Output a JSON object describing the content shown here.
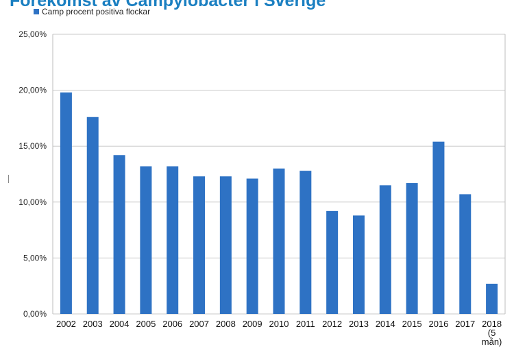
{
  "chart_data": {
    "type": "bar",
    "title": "Förekomst av Campylobacter i Sverige",
    "legend": {
      "label": "Camp procent positiva flockar",
      "position": "top-left"
    },
    "categories": [
      "2002",
      "2003",
      "2004",
      "2005",
      "2006",
      "2007",
      "2008",
      "2009",
      "2010",
      "2011",
      "2012",
      "2013",
      "2014",
      "2015",
      "2016",
      "2017",
      "2018 (5 mån)"
    ],
    "category_lines": [
      [
        "2002"
      ],
      [
        "2003"
      ],
      [
        "2004"
      ],
      [
        "2005"
      ],
      [
        "2006"
      ],
      [
        "2007"
      ],
      [
        "2008"
      ],
      [
        "2009"
      ],
      [
        "2010"
      ],
      [
        "2011"
      ],
      [
        "2012"
      ],
      [
        "2013"
      ],
      [
        "2014"
      ],
      [
        "2015"
      ],
      [
        "2016"
      ],
      [
        "2017"
      ],
      [
        "2018",
        "(5",
        "mån)"
      ]
    ],
    "series": [
      {
        "name": "Camp procent positiva flockar",
        "values": [
          19.8,
          17.6,
          14.2,
          13.2,
          13.2,
          12.3,
          12.3,
          12.1,
          13.0,
          12.8,
          9.2,
          8.8,
          11.5,
          11.7,
          15.4,
          10.7,
          2.7
        ]
      }
    ],
    "ylim": [
      0,
      25
    ],
    "yticks": [
      0,
      5,
      10,
      15,
      20,
      25
    ],
    "ytick_labels": [
      "0,00%",
      "5,00%",
      "10,00%",
      "15,00%",
      "20,00%",
      "25,00%"
    ],
    "grid": true,
    "colors": {
      "bar": "#2e72c4",
      "grid": "#c8c8c8",
      "title": "#1a7fc1"
    }
  }
}
